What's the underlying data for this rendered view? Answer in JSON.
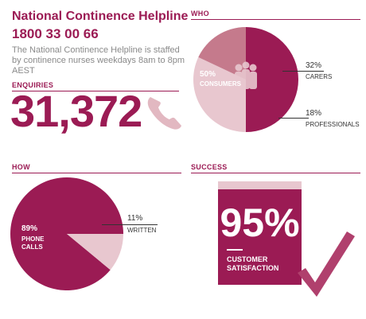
{
  "header": {
    "title": "National Continence Helpline",
    "phone": "1800 33 00 66",
    "description": "The National Continence Helpline is staffed by continence nurses weekdays 8am to 8pm AEST"
  },
  "enquiries": {
    "heading": "ENQUIRIES",
    "value": "31,372",
    "icon": "phone-icon"
  },
  "who": {
    "heading": "WHO",
    "consumers": {
      "pct": "50%",
      "label": "CONSUMERS",
      "value": 50
    },
    "carers": {
      "pct": "32%",
      "label": "CARERS",
      "value": 32
    },
    "professionals": {
      "pct": "18%",
      "label": "PROFESSIONALS",
      "value": 18
    }
  },
  "how": {
    "heading": "HOW",
    "phone": {
      "pct": "89%",
      "label1": "PHONE",
      "label2": "CALLS",
      "value": 89
    },
    "written": {
      "pct": "11%",
      "label": "WRITTEN",
      "value": 11
    }
  },
  "success": {
    "heading": "SUCCESS",
    "pct": "95%",
    "label1": "CUSTOMER",
    "label2": "SATISFACTION",
    "icon": "checkmark-icon"
  },
  "colors": {
    "primary": "#9b1b54",
    "light": "#e8c7cf",
    "mid": "#c57a8c"
  },
  "chart_data": [
    {
      "type": "pie",
      "title": "WHO",
      "categories": [
        "CONSUMERS",
        "CARERS",
        "PROFESSIONALS"
      ],
      "values": [
        50,
        32,
        18
      ]
    },
    {
      "type": "pie",
      "title": "HOW",
      "categories": [
        "PHONE CALLS",
        "WRITTEN"
      ],
      "values": [
        89,
        11
      ]
    }
  ]
}
